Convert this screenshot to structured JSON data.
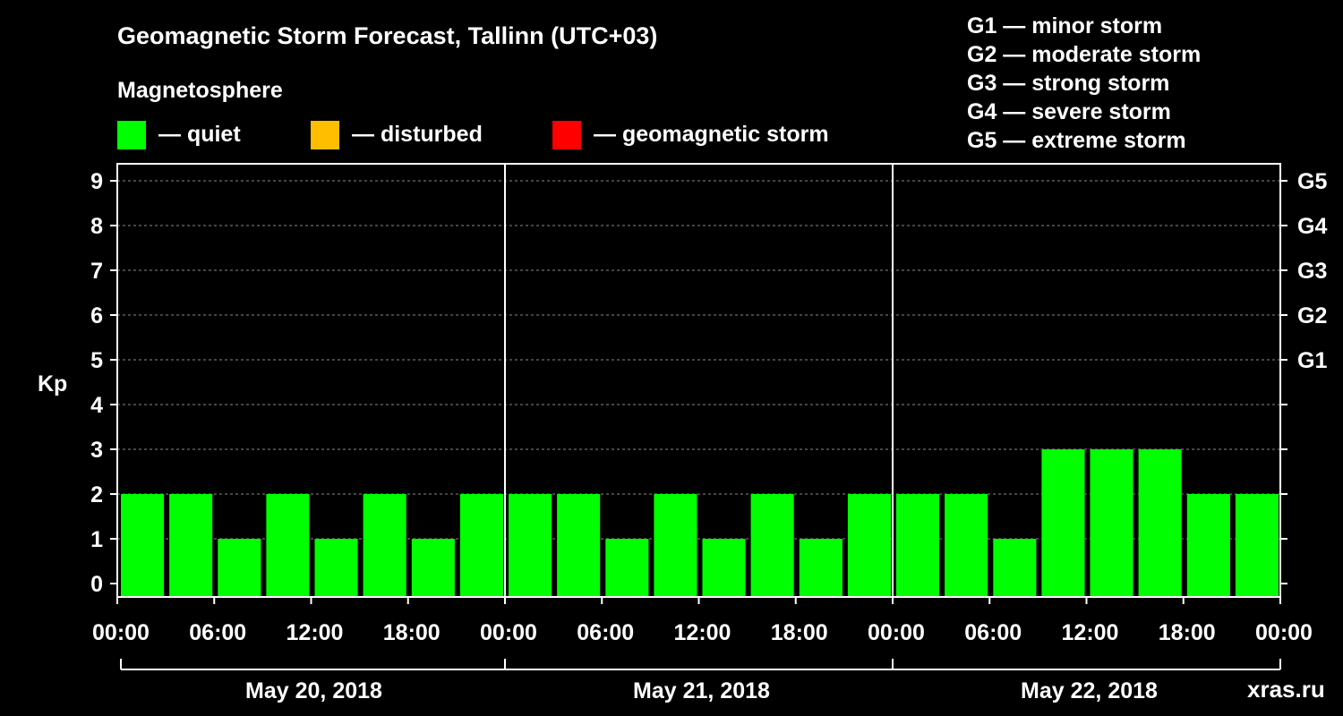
{
  "title": "Geomagnetic Storm Forecast, Tallinn (UTC+03)",
  "magnetosphere": {
    "heading": "Magnetosphere",
    "items": [
      {
        "label": "— quiet",
        "color": "#00ff00",
        "icon": "quiet-swatch"
      },
      {
        "label": "— disturbed",
        "color": "#ffbf00",
        "icon": "disturbed-swatch"
      },
      {
        "label": "— geomagnetic storm",
        "color": "#ff0000",
        "icon": "storm-swatch"
      }
    ]
  },
  "storm_scale": [
    "G1 — minor storm",
    "G2 — moderate storm",
    "G3 — strong storm",
    "G4 — severe storm",
    "G5 — extreme storm"
  ],
  "watermark": "xras.ru",
  "chart_data": {
    "type": "bar",
    "title": "Geomagnetic Storm Forecast, Tallinn (UTC+03)",
    "ylabel": "Kp",
    "ylim": [
      0,
      9
    ],
    "yticks": [
      0,
      1,
      2,
      3,
      4,
      5,
      6,
      7,
      8,
      9
    ],
    "right_axis_labels": [
      {
        "kp": 5,
        "label": "G1"
      },
      {
        "kp": 6,
        "label": "G2"
      },
      {
        "kp": 7,
        "label": "G3"
      },
      {
        "kp": 8,
        "label": "G4"
      },
      {
        "kp": 9,
        "label": "G5"
      }
    ],
    "grid": true,
    "interval_hours": 3,
    "x_tick_labels": [
      "00:00",
      "06:00",
      "12:00",
      "18:00",
      "00:00",
      "06:00",
      "12:00",
      "18:00",
      "00:00",
      "06:00",
      "12:00",
      "18:00",
      "00:00"
    ],
    "days": [
      {
        "label": "May 20, 2018",
        "values": [
          2,
          2,
          1,
          2,
          1,
          2,
          1,
          2
        ]
      },
      {
        "label": "May 21, 2018",
        "values": [
          2,
          2,
          1,
          2,
          1,
          2,
          1,
          2
        ]
      },
      {
        "label": "May 22, 2018",
        "values": [
          2,
          2,
          1,
          3,
          3,
          3,
          2,
          2
        ]
      }
    ],
    "bar_color": "#00ff00"
  }
}
